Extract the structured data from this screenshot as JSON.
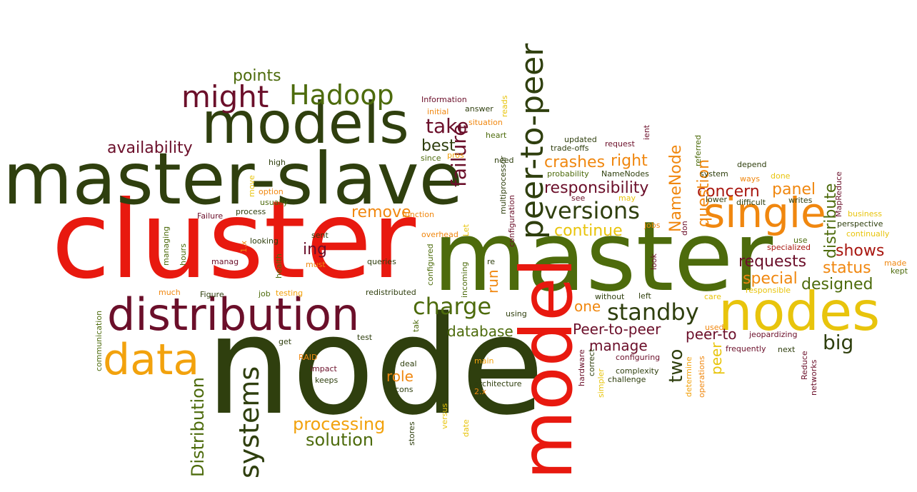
{
  "palette": {
    "olive": "#4d6b0c",
    "dark-olive": "#2f3f0e",
    "red": "#e8190f",
    "maroon": "#6b0f2a",
    "orange": "#f0870f",
    "amber": "#f2a20d",
    "gold": "#e8c40c",
    "dark-red": "#a8160f",
    "dark-green": "#2f3f0e"
  },
  "words": [
    {
      "text": "cluster",
      "color": "red"
    },
    {
      "text": "node",
      "color": "dark-olive"
    },
    {
      "text": "master",
      "color": "olive"
    },
    {
      "text": "master-slave",
      "color": "dark-olive"
    },
    {
      "text": "model",
      "color": "red"
    },
    {
      "text": "models",
      "color": "dark-olive"
    },
    {
      "text": "distribution",
      "color": "maroon"
    },
    {
      "text": "nodes",
      "color": "gold"
    },
    {
      "text": "peer-to-peer",
      "color": "dark-olive"
    },
    {
      "text": "single",
      "color": "orange"
    },
    {
      "text": "data",
      "color": "amber"
    },
    {
      "text": "might",
      "color": "maroon"
    },
    {
      "text": "Hadoop",
      "color": "olive"
    },
    {
      "text": "failure",
      "color": "maroon"
    },
    {
      "text": "systems",
      "color": "dark-olive"
    },
    {
      "text": "versions",
      "color": "dark-olive"
    },
    {
      "text": "standby",
      "color": "dark-olive"
    },
    {
      "text": "take",
      "color": "maroon"
    },
    {
      "text": "charge",
      "color": "olive"
    },
    {
      "text": "processing",
      "color": "amber"
    },
    {
      "text": "solution",
      "color": "olive"
    },
    {
      "text": "Distribution",
      "color": "olive"
    },
    {
      "text": "two",
      "color": "dark-olive"
    },
    {
      "text": "big",
      "color": "dark-olive"
    },
    {
      "text": "distribute",
      "color": "olive"
    },
    {
      "text": "crashes",
      "color": "orange"
    },
    {
      "text": "responsibility",
      "color": "maroon"
    },
    {
      "text": "best",
      "color": "dark-olive"
    },
    {
      "text": "right",
      "color": "orange"
    },
    {
      "text": "concern",
      "color": "dark-red"
    },
    {
      "text": "panel",
      "color": "orange"
    },
    {
      "text": "question",
      "color": "orange"
    },
    {
      "text": "NameNode",
      "color": "orange"
    },
    {
      "text": "continue",
      "color": "gold"
    },
    {
      "text": "availability",
      "color": "maroon"
    },
    {
      "text": "points",
      "color": "olive"
    },
    {
      "text": "remove",
      "color": "orange"
    },
    {
      "text": "ing",
      "color": "maroon"
    },
    {
      "text": "requests",
      "color": "maroon"
    },
    {
      "text": "shows",
      "color": "dark-red"
    },
    {
      "text": "status",
      "color": "orange"
    },
    {
      "text": "special",
      "color": "orange"
    },
    {
      "text": "designed",
      "color": "olive"
    },
    {
      "text": "database",
      "color": "olive"
    },
    {
      "text": "Peer-to-peer",
      "color": "maroon"
    },
    {
      "text": "manage",
      "color": "maroon"
    },
    {
      "text": "peer-to",
      "color": "maroon"
    },
    {
      "text": "peer",
      "color": "gold"
    },
    {
      "text": "one",
      "color": "orange"
    },
    {
      "text": "role",
      "color": "orange"
    },
    {
      "text": "run",
      "color": "orange"
    },
    {
      "text": "Information",
      "color": "maroon"
    },
    {
      "text": "initial",
      "color": "orange"
    },
    {
      "text": "answer",
      "color": "dark-olive"
    },
    {
      "text": "reads",
      "color": "gold"
    },
    {
      "text": "situation",
      "color": "orange"
    },
    {
      "text": "heart",
      "color": "olive"
    },
    {
      "text": "since",
      "color": "olive"
    },
    {
      "text": "pros",
      "color": "amber"
    },
    {
      "text": "need",
      "color": "dark-olive"
    },
    {
      "text": "high",
      "color": "dark-olive"
    },
    {
      "text": "move",
      "color": "gold"
    },
    {
      "text": "option",
      "color": "orange"
    },
    {
      "text": "usually",
      "color": "olive"
    },
    {
      "text": "Failure",
      "color": "maroon"
    },
    {
      "text": "process",
      "color": "dark-olive"
    },
    {
      "text": "function",
      "color": "orange"
    },
    {
      "text": "overhead",
      "color": "orange"
    },
    {
      "text": "Let",
      "color": "gold"
    },
    {
      "text": "managing",
      "color": "olive"
    },
    {
      "text": "hours",
      "color": "olive"
    },
    {
      "text": "1.x",
      "color": "orange"
    },
    {
      "text": "looking",
      "color": "dark-olive"
    },
    {
      "text": "sent",
      "color": "dark-olive"
    },
    {
      "text": "manag",
      "color": "maroon"
    },
    {
      "text": "health",
      "color": "olive"
    },
    {
      "text": "must",
      "color": "orange"
    },
    {
      "text": "queries",
      "color": "dark-olive"
    },
    {
      "text": "configured",
      "color": "olive"
    },
    {
      "text": "incoming",
      "color": "olive"
    },
    {
      "text": "re",
      "color": "dark-olive"
    },
    {
      "text": "much",
      "color": "orange"
    },
    {
      "text": "Figure",
      "color": "dark-olive"
    },
    {
      "text": "job",
      "color": "olive"
    },
    {
      "text": "testing",
      "color": "amber"
    },
    {
      "text": "redistributed",
      "color": "dark-olive"
    },
    {
      "text": "communication",
      "color": "olive"
    },
    {
      "text": "get",
      "color": "dark-olive"
    },
    {
      "text": "test",
      "color": "dark-olive"
    },
    {
      "text": "tak",
      "color": "olive"
    },
    {
      "text": "RAID",
      "color": "orange"
    },
    {
      "text": "impact",
      "color": "maroon"
    },
    {
      "text": "keeps",
      "color": "dark-olive"
    },
    {
      "text": "deal",
      "color": "dark-olive"
    },
    {
      "text": "cons",
      "color": "dark-olive"
    },
    {
      "text": "main",
      "color": "amber"
    },
    {
      "text": "architecture",
      "color": "dark-olive"
    },
    {
      "text": "2.x",
      "color": "orange"
    },
    {
      "text": "versus",
      "color": "gold"
    },
    {
      "text": "date",
      "color": "gold"
    },
    {
      "text": "stores",
      "color": "dark-olive"
    },
    {
      "text": "multiprocessor",
      "color": "dark-olive"
    },
    {
      "text": "configuration",
      "color": "maroon"
    },
    {
      "text": "using",
      "color": "dark-olive"
    },
    {
      "text": "trade-offs",
      "color": "dark-olive"
    },
    {
      "text": "updated",
      "color": "dark-olive"
    },
    {
      "text": "request",
      "color": "maroon"
    },
    {
      "text": "ient",
      "color": "maroon"
    },
    {
      "text": "probability",
      "color": "olive"
    },
    {
      "text": "NameNodes",
      "color": "dark-olive"
    },
    {
      "text": "see",
      "color": "maroon"
    },
    {
      "text": "may",
      "color": "gold"
    },
    {
      "text": "jobs",
      "color": "orange"
    },
    {
      "text": "look",
      "color": "maroon"
    },
    {
      "text": "without",
      "color": "dark-olive"
    },
    {
      "text": "left",
      "color": "dark-olive"
    },
    {
      "text": "hardware",
      "color": "maroon"
    },
    {
      "text": "correct",
      "color": "dark-olive"
    },
    {
      "text": "simpler",
      "color": "gold"
    },
    {
      "text": "challenge",
      "color": "dark-olive"
    },
    {
      "text": "complexity",
      "color": "dark-olive"
    },
    {
      "text": "configuring",
      "color": "maroon"
    },
    {
      "text": "jeopardizing",
      "color": "maroon"
    },
    {
      "text": "determine",
      "color": "amber"
    },
    {
      "text": "operations",
      "color": "orange"
    },
    {
      "text": "used",
      "color": "orange"
    },
    {
      "text": "care",
      "color": "gold"
    },
    {
      "text": "don",
      "color": "maroon"
    },
    {
      "text": "referred",
      "color": "olive"
    },
    {
      "text": "system",
      "color": "dark-olive"
    },
    {
      "text": "depend",
      "color": "dark-olive"
    },
    {
      "text": "ways",
      "color": "orange"
    },
    {
      "text": "done",
      "color": "gold"
    },
    {
      "text": "lower",
      "color": "dark-olive"
    },
    {
      "text": "difficult",
      "color": "dark-olive"
    },
    {
      "text": "writes",
      "color": "dark-olive"
    },
    {
      "text": "frequently",
      "color": "maroon"
    },
    {
      "text": "next",
      "color": "dark-olive"
    },
    {
      "text": "Reduce",
      "color": "maroon"
    },
    {
      "text": "networks",
      "color": "maroon"
    },
    {
      "text": "MapReduce",
      "color": "maroon"
    },
    {
      "text": "use",
      "color": "olive"
    },
    {
      "text": "specialized",
      "color": "dark-red"
    },
    {
      "text": "responsible",
      "color": "gold"
    },
    {
      "text": "business",
      "color": "gold"
    },
    {
      "text": "perspective",
      "color": "dark-olive"
    },
    {
      "text": "continually",
      "color": "gold"
    },
    {
      "text": "made",
      "color": "orange"
    },
    {
      "text": "kept",
      "color": "olive"
    }
  ]
}
